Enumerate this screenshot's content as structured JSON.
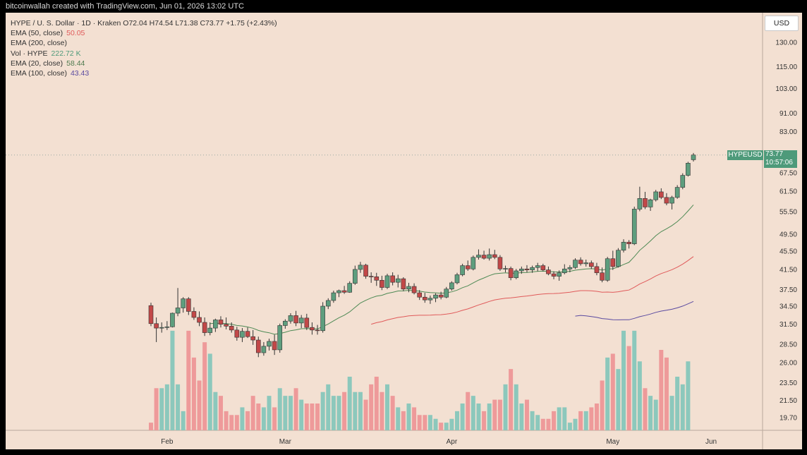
{
  "header": {
    "text": "bitcoinwallah created with TradingView.com, Jun 01, 2026 13:02 UTC"
  },
  "legend": {
    "ohlc": "HYPE / U. S. Dollar · 1D · Kraken  O72.04  H74.54  L71.38  C73.77  +1.75 (+2.43%)",
    "rows": [
      {
        "label": "EMA (50, close)",
        "value": "50.05",
        "color": "#e05a5a"
      },
      {
        "label": "EMA (200, close)",
        "value": "",
        "color": "#333333"
      },
      {
        "label": "Vol · HYPE",
        "value": "222.72 K",
        "color": "#4e9a7a"
      },
      {
        "label": "EMA (20, close)",
        "value": "58.44",
        "color": "#4e7a4e"
      },
      {
        "label": "EMA (100, close)",
        "value": "43.43",
        "color": "#5a4aa0"
      }
    ]
  },
  "currency": "USD",
  "price_label": {
    "symbol": "HYPEUSD",
    "price": "73.77",
    "countdown": "10:57:06"
  },
  "colors": {
    "up": "#5e9e7e",
    "down": "#c24848",
    "vol_up": "#8cc8bc",
    "vol_down": "#ee9a9a",
    "ema20": "#4e8a55",
    "ema50": "#e05a5a",
    "ema100": "#5a4aa0",
    "background": "#f3e0d2"
  },
  "chart_data": {
    "type": "candlestick",
    "title": "HYPE / U. S. Dollar · 1D · Kraken",
    "y_ticks": [
      "130.00",
      "115.00",
      "103.00",
      "91.00",
      "83.00",
      "67.50",
      "61.50",
      "55.50",
      "49.50",
      "45.50",
      "41.50",
      "37.50",
      "34.50",
      "31.50",
      "28.50",
      "26.00",
      "23.50",
      "21.50",
      "19.70"
    ],
    "x_ticks": [
      "Feb",
      "Mar",
      "Apr",
      "May",
      "Jun"
    ],
    "log_scale": true,
    "last_price": 73.77,
    "candles": [
      [
        34.6,
        35.1,
        31.2,
        31.6
      ],
      [
        31.6,
        32.6,
        28.8,
        30.9
      ],
      [
        30.9,
        31.8,
        30.2,
        31.0
      ],
      [
        31.0,
        32.0,
        30.6,
        31.1
      ],
      [
        31.1,
        33.4,
        31.0,
        33.3
      ],
      [
        33.3,
        37.8,
        32.8,
        34.2
      ],
      [
        34.2,
        36.1,
        33.4,
        35.8
      ],
      [
        35.8,
        36.1,
        33.0,
        33.6
      ],
      [
        33.6,
        34.3,
        32.2,
        32.6
      ],
      [
        32.6,
        33.6,
        31.2,
        31.8
      ],
      [
        31.8,
        32.6,
        29.7,
        30.2
      ],
      [
        30.2,
        31.8,
        29.8,
        30.9
      ],
      [
        30.9,
        32.4,
        30.3,
        32.2
      ],
      [
        32.2,
        32.8,
        31.0,
        31.5
      ],
      [
        31.5,
        32.6,
        30.7,
        31.2
      ],
      [
        31.2,
        31.8,
        30.2,
        30.6
      ],
      [
        30.6,
        31.1,
        29.0,
        29.5
      ],
      [
        29.5,
        30.9,
        28.8,
        30.4
      ],
      [
        30.4,
        31.0,
        29.4,
        29.6
      ],
      [
        29.6,
        30.6,
        28.4,
        29.1
      ],
      [
        29.1,
        29.6,
        26.7,
        27.3
      ],
      [
        27.3,
        28.8,
        26.9,
        28.2
      ],
      [
        28.2,
        29.3,
        27.6,
        28.9
      ],
      [
        28.9,
        29.9,
        27.0,
        27.7
      ],
      [
        27.7,
        31.6,
        27.3,
        31.3
      ],
      [
        31.3,
        32.3,
        30.8,
        32.0
      ],
      [
        32.0,
        33.3,
        31.6,
        32.9
      ],
      [
        32.9,
        33.7,
        31.2,
        31.7
      ],
      [
        31.7,
        33.0,
        30.9,
        32.5
      ],
      [
        32.5,
        33.2,
        30.6,
        31.0
      ],
      [
        31.0,
        31.8,
        29.9,
        30.6
      ],
      [
        30.6,
        31.4,
        29.9,
        30.5
      ],
      [
        30.5,
        35.2,
        30.2,
        34.5
      ],
      [
        34.5,
        35.9,
        34.0,
        35.5
      ],
      [
        35.5,
        37.3,
        35.1,
        36.9
      ],
      [
        36.9,
        37.5,
        36.1,
        37.3
      ],
      [
        37.3,
        38.2,
        36.7,
        37.0
      ],
      [
        37.0,
        39.1,
        36.9,
        38.7
      ],
      [
        38.7,
        42.3,
        38.4,
        41.5
      ],
      [
        41.5,
        43.1,
        40.8,
        42.4
      ],
      [
        42.4,
        42.7,
        39.6,
        40.1
      ],
      [
        40.1,
        40.9,
        38.8,
        40.0
      ],
      [
        40.0,
        40.8,
        38.2,
        39.3
      ],
      [
        39.3,
        40.2,
        37.4,
        37.9
      ],
      [
        37.9,
        40.6,
        37.6,
        40.2
      ],
      [
        40.2,
        40.9,
        38.3,
        38.9
      ],
      [
        38.9,
        40.4,
        37.9,
        39.6
      ],
      [
        39.6,
        39.9,
        37.2,
        37.6
      ],
      [
        37.6,
        38.8,
        37.0,
        38.1
      ],
      [
        38.1,
        38.7,
        36.6,
        36.9
      ],
      [
        36.9,
        37.4,
        35.6,
        36.1
      ],
      [
        36.1,
        36.9,
        35.1,
        35.6
      ],
      [
        35.6,
        36.4,
        34.9,
        35.9
      ],
      [
        35.9,
        36.8,
        35.2,
        36.5
      ],
      [
        36.5,
        37.1,
        35.7,
        36.1
      ],
      [
        36.1,
        38.0,
        35.9,
        37.6
      ],
      [
        37.6,
        39.1,
        37.3,
        38.8
      ],
      [
        38.8,
        40.8,
        38.5,
        40.4
      ],
      [
        40.4,
        42.7,
        40.1,
        42.3
      ],
      [
        42.3,
        43.4,
        41.2,
        41.6
      ],
      [
        41.6,
        44.5,
        41.3,
        44.1
      ],
      [
        44.1,
        45.9,
        43.6,
        44.6
      ],
      [
        44.6,
        45.6,
        43.6,
        43.9
      ],
      [
        43.9,
        46.1,
        43.4,
        44.7
      ],
      [
        44.7,
        45.8,
        43.7,
        44.1
      ],
      [
        44.1,
        44.6,
        41.2,
        41.6
      ],
      [
        41.6,
        42.3,
        40.9,
        41.7
      ],
      [
        41.7,
        42.1,
        39.3,
        39.8
      ],
      [
        39.8,
        41.6,
        39.5,
        41.2
      ],
      [
        41.2,
        42.1,
        40.6,
        41.6
      ],
      [
        41.6,
        42.4,
        40.9,
        41.4
      ],
      [
        41.4,
        42.3,
        40.8,
        41.9
      ],
      [
        41.9,
        42.9,
        41.1,
        42.3
      ],
      [
        42.3,
        42.7,
        41.1,
        41.4
      ],
      [
        41.4,
        42.1,
        40.3,
        40.6
      ],
      [
        40.6,
        41.1,
        39.5,
        40.1
      ],
      [
        40.1,
        41.3,
        39.2,
        40.8
      ],
      [
        40.8,
        42.6,
        40.5,
        41.6
      ],
      [
        41.6,
        42.4,
        40.9,
        41.9
      ],
      [
        41.9,
        43.9,
        41.6,
        43.5
      ],
      [
        43.5,
        44.1,
        42.3,
        42.7
      ],
      [
        42.7,
        43.6,
        42.1,
        42.9
      ],
      [
        42.9,
        43.4,
        41.6,
        42.1
      ],
      [
        42.1,
        42.9,
        40.3,
        40.8
      ],
      [
        40.8,
        41.9,
        38.9,
        39.3
      ],
      [
        39.3,
        44.2,
        39.0,
        43.8
      ],
      [
        43.8,
        45.6,
        41.4,
        42.1
      ],
      [
        42.1,
        46.2,
        41.9,
        45.7
      ],
      [
        45.7,
        48.3,
        45.2,
        47.6
      ],
      [
        47.6,
        48.1,
        46.1,
        47.2
      ],
      [
        47.2,
        56.9,
        46.9,
        56.2
      ],
      [
        56.2,
        62.9,
        55.6,
        59.3
      ],
      [
        59.3,
        61.3,
        56.2,
        56.8
      ],
      [
        56.8,
        59.2,
        55.7,
        58.9
      ],
      [
        58.9,
        61.9,
        58.4,
        61.3
      ],
      [
        61.3,
        62.4,
        59.1,
        59.6
      ],
      [
        59.6,
        60.9,
        57.3,
        57.9
      ],
      [
        57.9,
        60.1,
        56.1,
        59.6
      ],
      [
        59.6,
        63.4,
        59.2,
        62.7
      ],
      [
        62.7,
        67.3,
        62.1,
        66.6
      ],
      [
        66.6,
        71.3,
        66.2,
        70.8
      ],
      [
        72.04,
        74.54,
        71.38,
        73.77
      ]
    ],
    "volume": [
      2,
      11,
      11,
      12,
      26,
      12,
      5,
      26,
      19,
      13,
      23,
      20,
      10,
      9,
      5,
      4,
      4,
      6,
      5,
      9,
      7,
      6,
      9,
      6,
      11,
      9,
      9,
      11,
      8,
      7,
      7,
      7,
      10,
      12,
      9,
      9,
      10,
      14,
      10,
      10,
      8,
      12,
      14,
      10,
      12,
      9,
      6,
      5,
      7,
      6,
      4,
      4,
      4,
      3,
      2,
      2,
      3,
      5,
      7,
      10,
      9,
      7,
      5,
      7,
      8,
      8,
      12,
      16,
      12,
      7,
      8,
      5,
      4,
      3,
      3,
      5,
      6,
      6,
      2,
      3,
      5,
      5,
      6,
      7,
      13,
      19,
      20,
      16,
      26,
      22,
      26,
      18,
      11,
      9,
      8,
      21,
      19,
      9,
      14,
      12,
      18
    ]
  }
}
